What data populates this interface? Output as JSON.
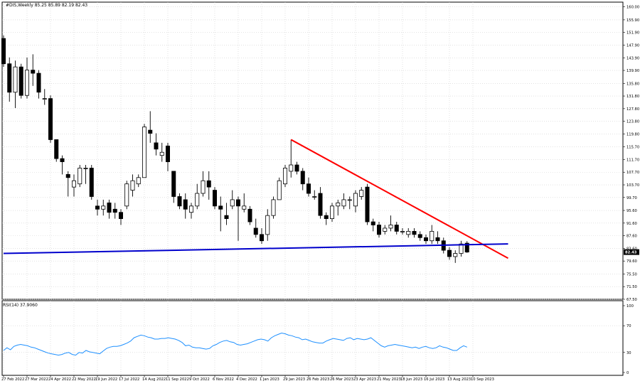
{
  "header": {
    "symbol_line": "#DIS,Weekly  85.25 85.89 82.19 82.43"
  },
  "chart_data": [
    {
      "type": "candlestick",
      "panel": "price",
      "y_ticks": [
        "160.00",
        "155.90",
        "151.90",
        "147.90",
        "143.90",
        "139.90",
        "135.80",
        "131.80",
        "127.80",
        "123.80",
        "119.80",
        "115.70",
        "111.70",
        "107.70",
        "103.70",
        "99.70",
        "95.60",
        "91.60",
        "87.60",
        "83.60",
        "79.60",
        "75.50",
        "71.50",
        "67.50"
      ],
      "ylim": [
        67.5,
        161.5
      ],
      "current_price_label": "82.43",
      "x_labels": [
        "27 Feb 2022",
        "27 Mar 2022",
        "24 Apr 2022",
        "22 May 2022",
        "19 Jun 2022",
        "17 Jul 2022",
        "14 Aug 2022",
        "11 Sep 2022",
        "9 Oct 2022",
        "6 Nov 2022",
        "4 Dec 2022",
        "1 Jan 2023",
        "29 Jan 2023",
        "26 Feb 2023",
        "26 Mar 2023",
        "23 Apr 2023",
        "21 May 2023",
        "18 Jun 2023",
        "16 Jul 2023",
        "13 Aug 2023",
        "10 Sep 2023"
      ],
      "candles": [
        {
          "o": 150,
          "h": 151,
          "l": 141,
          "c": 142
        },
        {
          "o": 142,
          "h": 144,
          "l": 130,
          "c": 133
        },
        {
          "o": 133,
          "h": 143,
          "l": 128,
          "c": 141
        },
        {
          "o": 141,
          "h": 142,
          "l": 131,
          "c": 132
        },
        {
          "o": 132,
          "h": 144,
          "l": 131,
          "c": 140
        },
        {
          "o": 140,
          "h": 145,
          "l": 135,
          "c": 139
        },
        {
          "o": 139,
          "h": 140,
          "l": 131,
          "c": 133
        },
        {
          "o": 131,
          "h": 134,
          "l": 129,
          "c": 131
        },
        {
          "o": 131,
          "h": 132,
          "l": 117,
          "c": 118
        },
        {
          "o": 118,
          "h": 118,
          "l": 111,
          "c": 112
        },
        {
          "o": 112,
          "h": 113,
          "l": 107,
          "c": 111
        },
        {
          "o": 107,
          "h": 108,
          "l": 100,
          "c": 106
        },
        {
          "o": 103,
          "h": 107,
          "l": 100,
          "c": 105
        },
        {
          "o": 104,
          "h": 110,
          "l": 103,
          "c": 109
        },
        {
          "o": 109,
          "h": 110,
          "l": 104,
          "c": 109
        },
        {
          "o": 109,
          "h": 110,
          "l": 99,
          "c": 100
        },
        {
          "o": 97,
          "h": 99,
          "l": 94,
          "c": 96
        },
        {
          "o": 96,
          "h": 99,
          "l": 94,
          "c": 97
        },
        {
          "o": 98,
          "h": 99,
          "l": 93,
          "c": 95
        },
        {
          "o": 96,
          "h": 98,
          "l": 93,
          "c": 95
        },
        {
          "o": 95,
          "h": 96,
          "l": 91,
          "c": 93
        },
        {
          "o": 97,
          "h": 105,
          "l": 96,
          "c": 104
        },
        {
          "o": 102,
          "h": 107,
          "l": 100,
          "c": 105
        },
        {
          "o": 104,
          "h": 107,
          "l": 103,
          "c": 106
        },
        {
          "o": 106,
          "h": 123,
          "l": 106,
          "c": 122
        },
        {
          "o": 121,
          "h": 127,
          "l": 117,
          "c": 120
        },
        {
          "o": 117,
          "h": 120,
          "l": 113,
          "c": 115
        },
        {
          "o": 113,
          "h": 117,
          "l": 111,
          "c": 114
        },
        {
          "o": 116,
          "h": 117,
          "l": 108,
          "c": 111
        },
        {
          "o": 108,
          "h": 108,
          "l": 98,
          "c": 100
        },
        {
          "o": 100,
          "h": 101,
          "l": 96,
          "c": 97
        },
        {
          "o": 99,
          "h": 101,
          "l": 93,
          "c": 96
        },
        {
          "o": 95,
          "h": 98,
          "l": 93,
          "c": 97
        },
        {
          "o": 97,
          "h": 104,
          "l": 96,
          "c": 101
        },
        {
          "o": 101,
          "h": 108,
          "l": 100,
          "c": 105
        },
        {
          "o": 105,
          "h": 108,
          "l": 99,
          "c": 103
        },
        {
          "o": 102,
          "h": 103,
          "l": 96,
          "c": 97
        },
        {
          "o": 97,
          "h": 100,
          "l": 89,
          "c": 96
        },
        {
          "o": 94,
          "h": 98,
          "l": 91,
          "c": 93
        },
        {
          "o": 97,
          "h": 102,
          "l": 96,
          "c": 99
        },
        {
          "o": 99,
          "h": 100,
          "l": 86,
          "c": 97
        },
        {
          "o": 96,
          "h": 101,
          "l": 95,
          "c": 97
        },
        {
          "o": 96,
          "h": 97,
          "l": 91,
          "c": 92
        },
        {
          "o": 90,
          "h": 93,
          "l": 87,
          "c": 88
        },
        {
          "o": 88,
          "h": 90,
          "l": 85,
          "c": 86
        },
        {
          "o": 88,
          "h": 96,
          "l": 86,
          "c": 94
        },
        {
          "o": 94,
          "h": 100,
          "l": 93,
          "c": 99
        },
        {
          "o": 99,
          "h": 106,
          "l": 99,
          "c": 105
        },
        {
          "o": 104,
          "h": 110,
          "l": 103,
          "c": 109
        },
        {
          "o": 108,
          "h": 118,
          "l": 106,
          "c": 110
        },
        {
          "o": 110,
          "h": 111,
          "l": 107,
          "c": 108
        },
        {
          "o": 108,
          "h": 109,
          "l": 102,
          "c": 104
        },
        {
          "o": 104,
          "h": 106,
          "l": 100,
          "c": 101
        },
        {
          "o": 100,
          "h": 102,
          "l": 99,
          "c": 100
        },
        {
          "o": 101,
          "h": 103,
          "l": 93,
          "c": 94
        },
        {
          "o": 94,
          "h": 95,
          "l": 91,
          "c": 93
        },
        {
          "o": 93,
          "h": 98,
          "l": 92,
          "c": 97
        },
        {
          "o": 97,
          "h": 99,
          "l": 94,
          "c": 98
        },
        {
          "o": 97,
          "h": 101,
          "l": 96,
          "c": 99
        },
        {
          "o": 99,
          "h": 100,
          "l": 96,
          "c": 99
        },
        {
          "o": 97,
          "h": 102,
          "l": 95,
          "c": 101
        },
        {
          "o": 100,
          "h": 103,
          "l": 99,
          "c": 102
        },
        {
          "o": 103,
          "h": 104,
          "l": 91,
          "c": 92
        },
        {
          "o": 92,
          "h": 93,
          "l": 89,
          "c": 91
        },
        {
          "o": 91,
          "h": 92,
          "l": 87,
          "c": 88
        },
        {
          "o": 89,
          "h": 91,
          "l": 88,
          "c": 90
        },
        {
          "o": 90,
          "h": 94,
          "l": 89,
          "c": 91
        },
        {
          "o": 91,
          "h": 92,
          "l": 88,
          "c": 89
        },
        {
          "o": 89,
          "h": 90,
          "l": 88,
          "c": 89
        },
        {
          "o": 88,
          "h": 90,
          "l": 87,
          "c": 89
        },
        {
          "o": 89,
          "h": 90,
          "l": 87,
          "c": 88
        },
        {
          "o": 88,
          "h": 89,
          "l": 86,
          "c": 87
        },
        {
          "o": 87,
          "h": 88,
          "l": 85,
          "c": 86
        },
        {
          "o": 86,
          "h": 91,
          "l": 85,
          "c": 89
        },
        {
          "o": 87,
          "h": 89,
          "l": 85,
          "c": 86
        },
        {
          "o": 86,
          "h": 87,
          "l": 82,
          "c": 83
        },
        {
          "o": 83,
          "h": 84,
          "l": 80,
          "c": 81
        },
        {
          "o": 81,
          "h": 83,
          "l": 79,
          "c": 82
        },
        {
          "o": 82,
          "h": 86,
          "l": 81,
          "c": 85
        },
        {
          "o": 85.25,
          "h": 85.89,
          "l": 82.19,
          "c": 82.43
        }
      ],
      "trendlines": [
        {
          "name": "resistance",
          "color": "#ff0000",
          "from": {
            "index": 49,
            "price": 118
          },
          "to": {
            "index": 86,
            "price": 80.5
          }
        },
        {
          "name": "support",
          "color": "#0000cc",
          "from": {
            "index": 0,
            "price": 82.0
          },
          "to": {
            "index": 86,
            "price": 85.0
          }
        }
      ],
      "colors": {
        "bull": "#ffffff",
        "bear": "#000000",
        "grid": "#c0c0c0"
      }
    },
    {
      "type": "line",
      "panel": "rsi",
      "label": "RSI(14) 37.9060",
      "y_ticks": [
        "100",
        "70",
        "30",
        "0"
      ],
      "ylim": [
        0,
        100
      ],
      "series": [
        {
          "color": "#1e90ff",
          "values": [
            33,
            37,
            34,
            39,
            41,
            42,
            41,
            40,
            38,
            37,
            35,
            33,
            31,
            29,
            28,
            27,
            26,
            27,
            29,
            30,
            27,
            26,
            30,
            29,
            33,
            31,
            30,
            29,
            28,
            32,
            36,
            38,
            39,
            39,
            40,
            42,
            44,
            47,
            52,
            54,
            56,
            55,
            53,
            52,
            50,
            50,
            51,
            51,
            52,
            51,
            50,
            48,
            45,
            40,
            41,
            38,
            37,
            37,
            36,
            35,
            36,
            40,
            42,
            45,
            47,
            48,
            46,
            45,
            42,
            41,
            42,
            43,
            45,
            47,
            49,
            50,
            49,
            47,
            52,
            55,
            57,
            59,
            58,
            56,
            55,
            53,
            52,
            49,
            50,
            48,
            46,
            45,
            44,
            44,
            47,
            49,
            51,
            50,
            49,
            48,
            51,
            52,
            49,
            51,
            50,
            49,
            50,
            52,
            48,
            44,
            40,
            38,
            40,
            41,
            42,
            41,
            40,
            39,
            38,
            37,
            38,
            36,
            38,
            39,
            37,
            36,
            37,
            40,
            38,
            37,
            35,
            33,
            33,
            37,
            40,
            38
          ]
        }
      ]
    }
  ]
}
